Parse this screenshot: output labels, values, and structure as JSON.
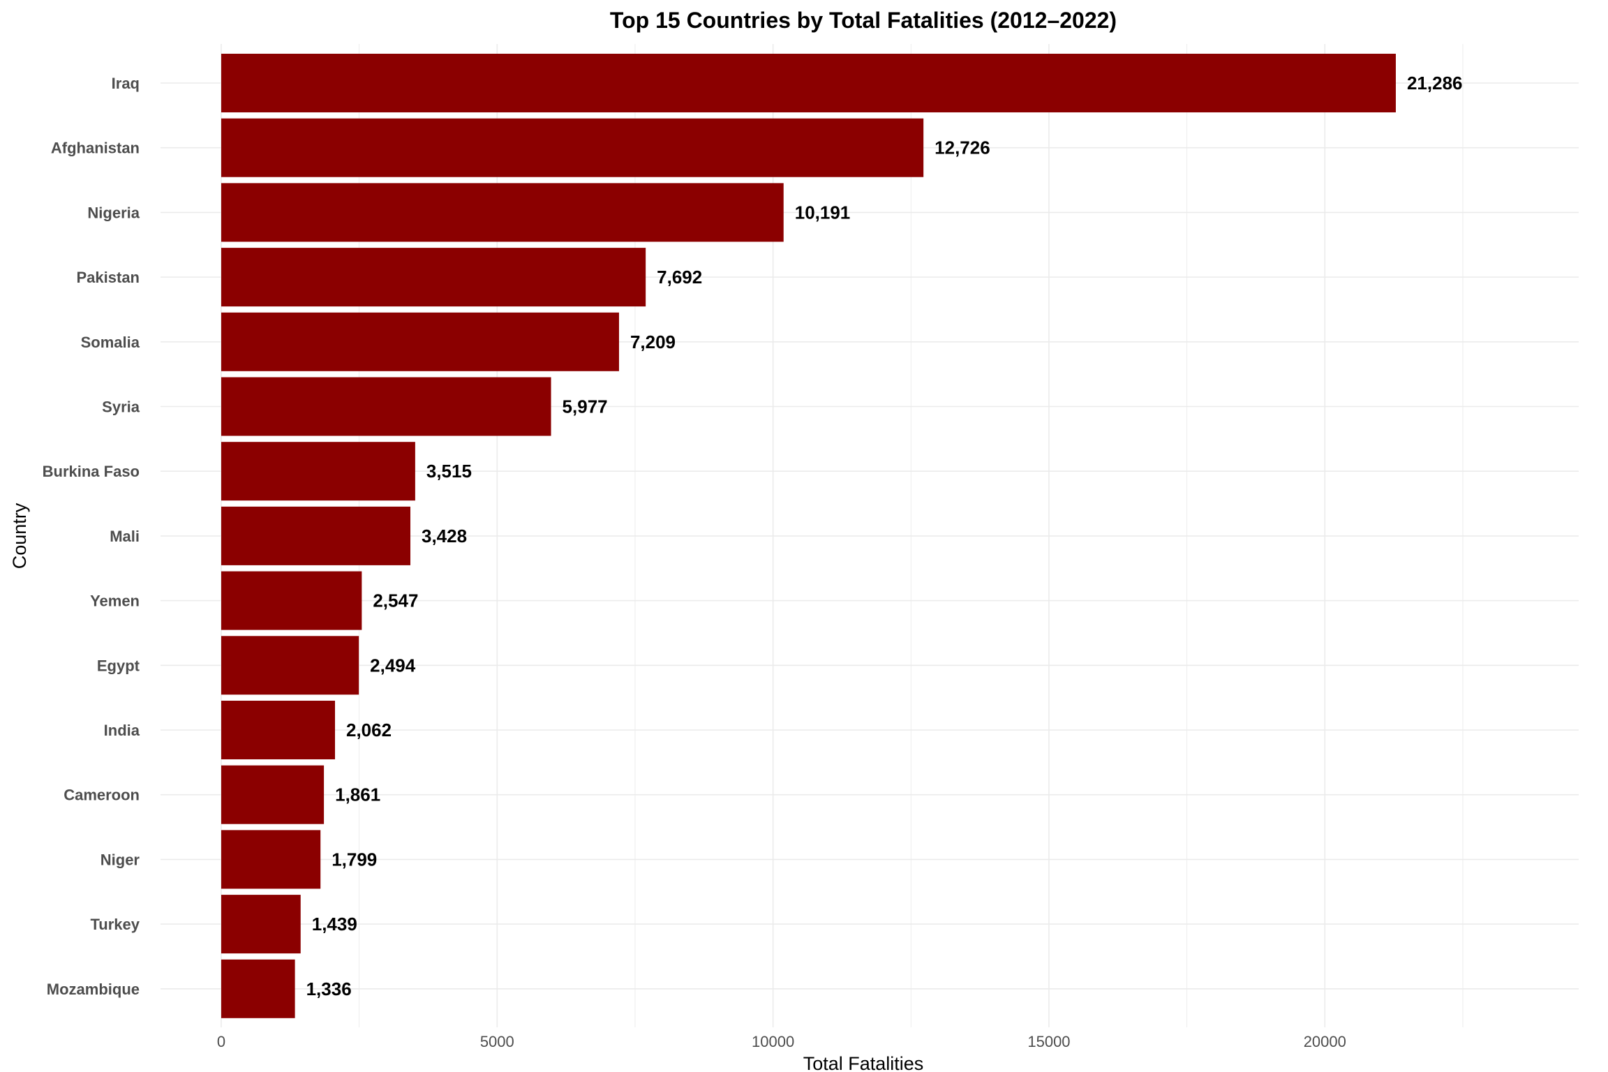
{
  "chart_data": {
    "type": "bar",
    "orientation": "horizontal",
    "title": "Top 15 Countries by Total Fatalities (2012–2022)",
    "xlabel": "Total Fatalities",
    "ylabel": "Country",
    "categories": [
      "Iraq",
      "Afghanistan",
      "Nigeria",
      "Pakistan",
      "Somalia",
      "Syria",
      "Burkina Faso",
      "Mali",
      "Yemen",
      "Egypt",
      "India",
      "Cameroon",
      "Niger",
      "Turkey",
      "Mozambique"
    ],
    "values": [
      21286,
      12726,
      10191,
      7692,
      7209,
      5977,
      3515,
      3428,
      2547,
      2494,
      2062,
      1861,
      1799,
      1439,
      1336
    ],
    "value_labels": [
      "21,286",
      "12,726",
      "10,191",
      "7,692",
      "7,209",
      "5,977",
      "3,515",
      "3,428",
      "2,547",
      "2,494",
      "2,062",
      "1,861",
      "1,799",
      "1,439",
      "1,336"
    ],
    "x_ticks": [
      0,
      5000,
      10000,
      15000,
      20000
    ],
    "x_tick_labels": [
      "0",
      "5000",
      "10000",
      "15000",
      "20000"
    ],
    "xlim": [
      -1100,
      24600
    ],
    "grid": true,
    "legend": "none",
    "bar_color": "#8b0000",
    "grid_color": "#ebebeb"
  }
}
